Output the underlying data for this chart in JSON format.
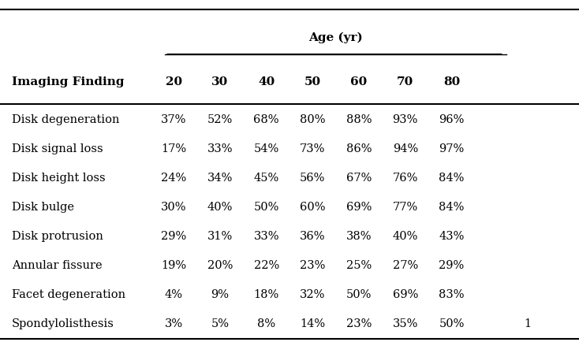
{
  "title_age": "Age (yr)",
  "col_header": "Imaging Finding",
  "age_cols": [
    "20",
    "30",
    "40",
    "50",
    "60",
    "70",
    "80"
  ],
  "rows": [
    {
      "finding": "Disk degeneration",
      "values": [
        "37%",
        "52%",
        "68%",
        "80%",
        "88%",
        "93%",
        "96%"
      ]
    },
    {
      "finding": "Disk signal loss",
      "values": [
        "17%",
        "33%",
        "54%",
        "73%",
        "86%",
        "94%",
        "97%"
      ]
    },
    {
      "finding": "Disk height loss",
      "values": [
        "24%",
        "34%",
        "45%",
        "56%",
        "67%",
        "76%",
        "84%"
      ]
    },
    {
      "finding": "Disk bulge",
      "values": [
        "30%",
        "40%",
        "50%",
        "60%",
        "69%",
        "77%",
        "84%"
      ]
    },
    {
      "finding": "Disk protrusion",
      "values": [
        "29%",
        "31%",
        "33%",
        "36%",
        "38%",
        "40%",
        "43%"
      ]
    },
    {
      "finding": "Annular fissure",
      "values": [
        "19%",
        "20%",
        "22%",
        "23%",
        "25%",
        "27%",
        "29%"
      ]
    },
    {
      "finding": "Facet degeneration",
      "values": [
        "4%",
        "9%",
        "18%",
        "32%",
        "50%",
        "69%",
        "83%"
      ]
    },
    {
      "finding": "Spondylolisthesis",
      "values": [
        "3%",
        "5%",
        "8%",
        "14%",
        "23%",
        "35%",
        "50%"
      ]
    }
  ],
  "footnote": "1",
  "bg_color": "#ffffff",
  "text_color": "#000000",
  "header_fontsize": 11,
  "body_fontsize": 10.5,
  "line_color": "#000000"
}
